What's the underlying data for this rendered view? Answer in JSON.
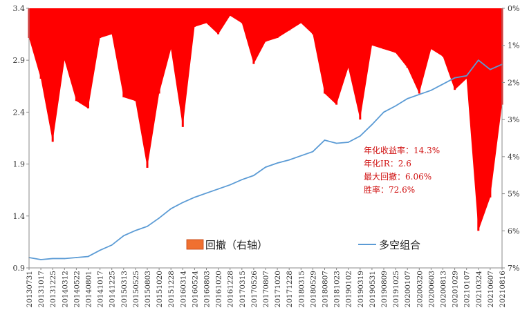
{
  "chart_data": {
    "type": "area+line",
    "title": "",
    "x_tick_labels": [
      "20130731",
      "20131017",
      "20131225",
      "20140312",
      "20140522",
      "20140801",
      "20141017",
      "20141225",
      "20150313",
      "20150525",
      "20150803",
      "20151020",
      "20151228",
      "20160314",
      "20160524",
      "20160803",
      "20161020",
      "20161228",
      "20170315",
      "20170526",
      "20170807",
      "20171020",
      "20171228",
      "20180315",
      "20180529",
      "20180807",
      "20181023",
      "20190102",
      "20190319",
      "20190531",
      "20190809",
      "20191025",
      "20200107",
      "20200320",
      "20200603",
      "20200813",
      "20201029",
      "20210107",
      "20210324",
      "20210607",
      "20210816"
    ],
    "y_left": {
      "ylim": [
        0.9,
        3.4
      ],
      "ticks": [
        "0.9",
        "1.4",
        "1.9",
        "2.4",
        "2.9",
        "3.4"
      ]
    },
    "y_right": {
      "ylim": [
        0,
        7
      ],
      "inverted": true,
      "ticks": [
        "0%",
        "1%",
        "2%",
        "3%",
        "4%",
        "5%",
        "6%",
        "7%"
      ]
    },
    "series": [
      {
        "name": "多空组合",
        "axis": "left",
        "type": "line",
        "color": "#5b9bd5",
        "x": [
          "20130731",
          "20131017",
          "20131225",
          "20140312",
          "20140522",
          "20140801",
          "20141017",
          "20141225",
          "20150313",
          "20150525",
          "20150803",
          "20151020",
          "20151228",
          "20160314",
          "20160524",
          "20160803",
          "20161020",
          "20161228",
          "20170315",
          "20170526",
          "20170807",
          "20171020",
          "20171228",
          "20180315",
          "20180529",
          "20180807",
          "20181023",
          "20190102",
          "20190319",
          "20190531",
          "20190809",
          "20191025",
          "20200107",
          "20200320",
          "20200603",
          "20200813",
          "20201029",
          "20210107",
          "20210324",
          "20210607",
          "20210816"
        ],
        "values": [
          1.0,
          0.98,
          0.99,
          0.99,
          1.0,
          1.01,
          1.07,
          1.12,
          1.21,
          1.26,
          1.3,
          1.38,
          1.47,
          1.53,
          1.58,
          1.62,
          1.66,
          1.7,
          1.75,
          1.79,
          1.87,
          1.91,
          1.94,
          1.98,
          2.02,
          2.13,
          2.1,
          2.11,
          2.17,
          2.28,
          2.4,
          2.46,
          2.53,
          2.57,
          2.61,
          2.67,
          2.73,
          2.75,
          2.9,
          2.81,
          2.86
        ]
      },
      {
        "name": "回撤（右轴）",
        "axis": "right",
        "type": "area",
        "color": "#ff0000",
        "unit": "%",
        "x": [
          "20130731",
          "20131017",
          "20131225",
          "20140312",
          "20140522",
          "20140801",
          "20141017",
          "20141225",
          "20150313",
          "20150525",
          "20150803",
          "20151020",
          "20151228",
          "20160314",
          "20160524",
          "20160803",
          "20161020",
          "20161228",
          "20170315",
          "20170526",
          "20170807",
          "20171020",
          "20171228",
          "20180315",
          "20180529",
          "20180807",
          "20181023",
          "20190102",
          "20190319",
          "20190531",
          "20190809",
          "20191025",
          "20200107",
          "20200320",
          "20200603",
          "20200813",
          "20201029",
          "20210107",
          "20210324",
          "20210607",
          "20210816"
        ],
        "values": [
          0.8,
          1.9,
          3.6,
          1.4,
          2.5,
          2.7,
          0.8,
          0.7,
          2.4,
          2.5,
          4.3,
          2.3,
          1.1,
          3.2,
          0.5,
          0.4,
          0.7,
          0.2,
          0.4,
          1.5,
          0.9,
          0.8,
          0.6,
          0.4,
          0.7,
          2.3,
          2.6,
          1.6,
          3.0,
          1.0,
          1.1,
          1.2,
          1.6,
          2.3,
          1.1,
          1.3,
          2.2,
          1.9,
          6.0,
          5.1,
          2.6
        ]
      }
    ],
    "legend": {
      "placement": "bottom-center",
      "entries": [
        "回撤（右轴）",
        "多空组合"
      ]
    },
    "annotations": [
      "年化收益率：14.3%",
      "年化IR：2.6",
      "最大回撤：6.06%",
      "胜率：72.6%"
    ],
    "grid": false
  }
}
